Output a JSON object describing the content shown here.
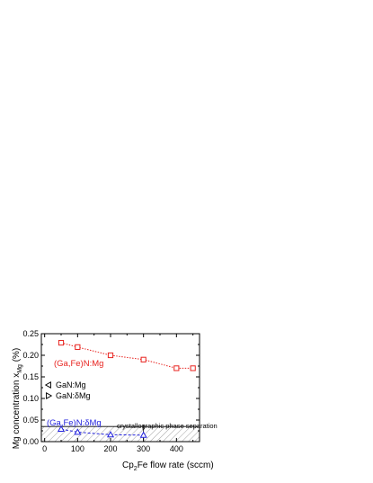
{
  "chart_data": {
    "type": "scatter",
    "xlabel_pre": "Cp",
    "xlabel_sub": "2",
    "xlabel_post": "Fe flow rate (sccm)",
    "ylabel_pre": "Mg concentration x",
    "ylabel_sub": "Mg",
    "ylabel_post": " (%)",
    "xlim": [
      -10,
      470
    ],
    "ylim": [
      0,
      0.25
    ],
    "xticks": [
      "0",
      "100",
      "200",
      "300",
      "400"
    ],
    "xtick_values": [
      0,
      100,
      200,
      300,
      400
    ],
    "yticks": [
      "0.00",
      "0.05",
      "0.10",
      "0.15",
      "0.20",
      "0.25"
    ],
    "ytick_values": [
      0,
      0.05,
      0.1,
      0.15,
      0.2,
      0.25
    ],
    "series": [
      {
        "name": "(Ga,Fe)N:Mg",
        "marker": "square",
        "color": "#e8231f",
        "x": [
          50,
          100,
          200,
          300,
          400,
          450
        ],
        "y": [
          0.229,
          0.219,
          0.2,
          0.19,
          0.17,
          0.17
        ]
      },
      {
        "name": "(Ga,Fe)N:δMg",
        "marker": "triangle-up",
        "color": "#2222dd",
        "x": [
          50,
          100,
          200,
          300
        ],
        "y": [
          0.029,
          0.022,
          0.016,
          0.015
        ]
      }
    ],
    "legend": [
      {
        "label": "GaN:Mg",
        "marker": "triangle-left",
        "color": "#000000"
      },
      {
        "label": "GaN:δMg",
        "marker": "triangle-right",
        "color": "#000000"
      }
    ],
    "annotation": "crystallographic phase separation",
    "hatched_region_ymax": 0.035,
    "hatched_region_x_start": 300
  }
}
